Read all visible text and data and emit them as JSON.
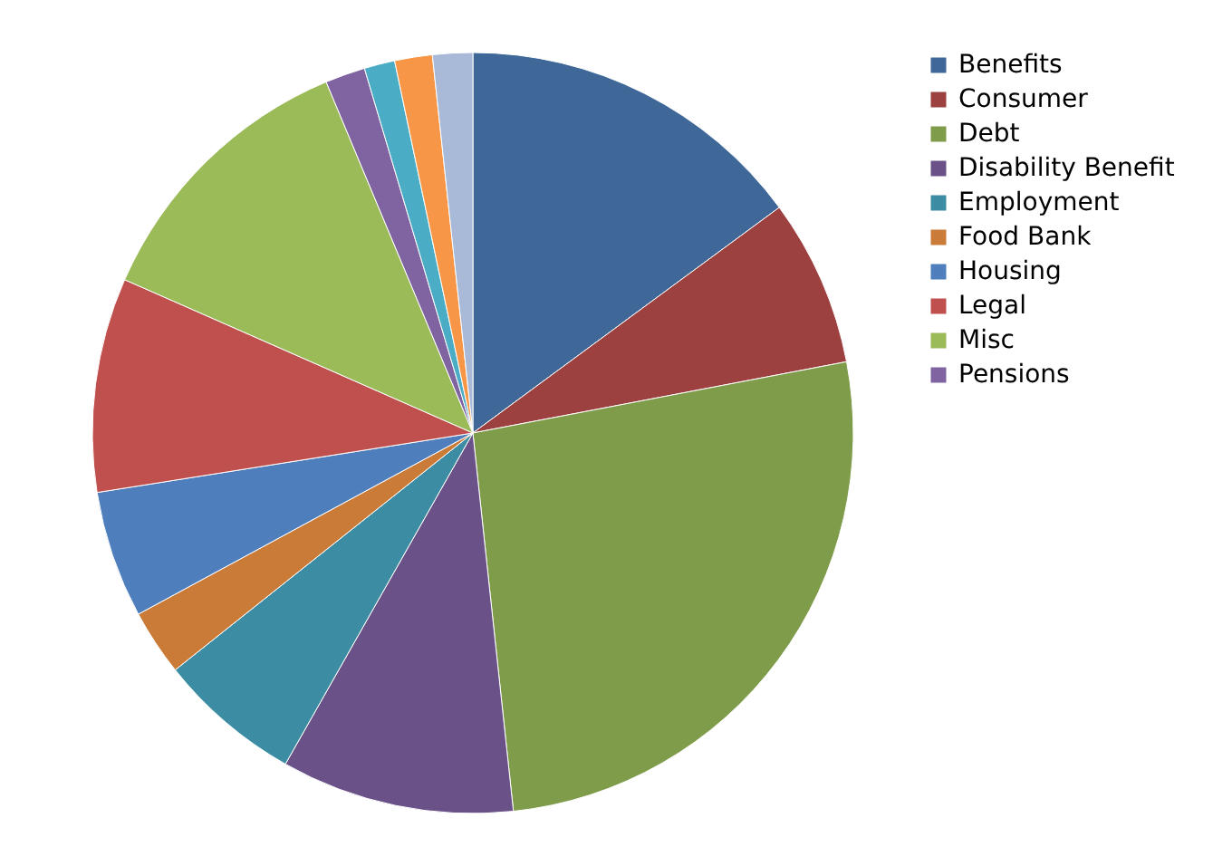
{
  "chart_data": {
    "type": "pie",
    "categories": [
      "Benefits",
      "Consumer",
      "Debt",
      "Disability Benefit",
      "Employment",
      "Food Bank",
      "Housing",
      "Legal",
      "Misc",
      "Pensions",
      null,
      null,
      null
    ],
    "values": [
      14.9,
      7.1,
      26.3,
      9.9,
      6.1,
      2.8,
      5.4,
      9.1,
      12.1,
      1.7,
      1.3,
      1.6,
      1.7
    ],
    "colors": [
      "#3f6899",
      "#9c4140",
      "#7f9c4a",
      "#6a5288",
      "#3c8ca3",
      "#cb7b38",
      "#4e7fbc",
      "#c0504e",
      "#9bbb59",
      "#8064a2",
      "#4bacc6",
      "#f79646",
      "#a9b9d8"
    ],
    "legend": "right"
  }
}
